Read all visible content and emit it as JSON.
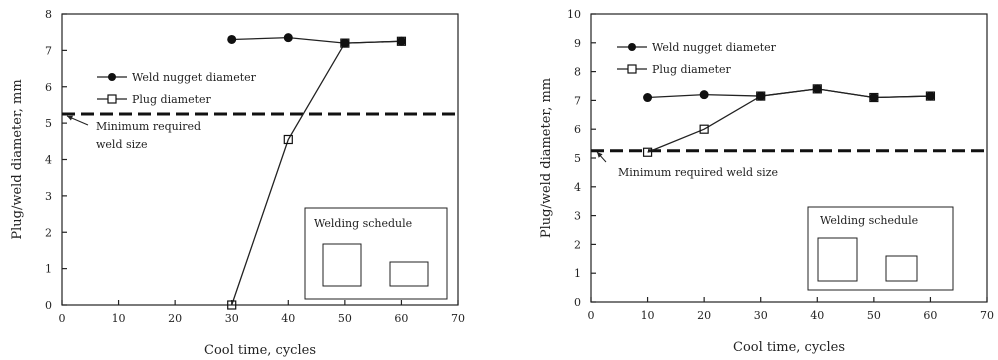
{
  "chart_data": [
    {
      "type": "line",
      "xlabel": "Cool time, cycles",
      "ylabel": "Plug/weld diameter, mm",
      "xlim": [
        0,
        70
      ],
      "ylim": [
        0,
        8
      ],
      "xticks": [
        "0",
        "10",
        "20",
        "30",
        "40",
        "50",
        "60",
        "70"
      ],
      "yticks": [
        "0",
        "1",
        "2",
        "3",
        "4",
        "5",
        "6",
        "7",
        "8"
      ],
      "grid": false,
      "legend_position": "middle-left",
      "series": [
        {
          "name": "Weld nugget diameter",
          "marker": "filled-circle",
          "x": [
            30,
            40,
            50,
            60
          ],
          "y": [
            7.3,
            7.35,
            7.2,
            7.25
          ]
        },
        {
          "name": "Plug diameter",
          "marker": "open-square",
          "x": [
            30,
            40,
            50,
            60
          ],
          "y": [
            0,
            4.55,
            7.2,
            7.25
          ]
        }
      ],
      "reference_line": {
        "y": 5.25,
        "label_lines": [
          "Minimum required",
          "weld size"
        ]
      },
      "inset": {
        "label": "Welding schedule"
      }
    },
    {
      "type": "line",
      "xlabel": "Cool time, cycles",
      "ylabel": "Plug/weld diameter, mm",
      "xlim": [
        0,
        70
      ],
      "ylim": [
        0,
        10
      ],
      "xticks": [
        "0",
        "10",
        "20",
        "30",
        "40",
        "50",
        "60",
        "70"
      ],
      "yticks": [
        "0",
        "1",
        "2",
        "3",
        "4",
        "5",
        "6",
        "7",
        "8",
        "9",
        "10"
      ],
      "grid": false,
      "legend_position": "top-left",
      "series": [
        {
          "name": "Weld nugget diameter",
          "marker": "filled-circle",
          "x": [
            10,
            20,
            30,
            40,
            50,
            60
          ],
          "y": [
            7.1,
            7.2,
            7.15,
            7.4,
            7.1,
            7.15
          ]
        },
        {
          "name": "Plug diameter",
          "marker": "open-square",
          "x": [
            10,
            20,
            30,
            40,
            50,
            60
          ],
          "y": [
            5.2,
            6.0,
            7.15,
            7.4,
            7.1,
            7.15
          ]
        }
      ],
      "reference_line": {
        "y": 5.25,
        "label_lines": [
          "Minimum required weld size"
        ]
      },
      "inset": {
        "label": "Welding schedule"
      }
    }
  ]
}
